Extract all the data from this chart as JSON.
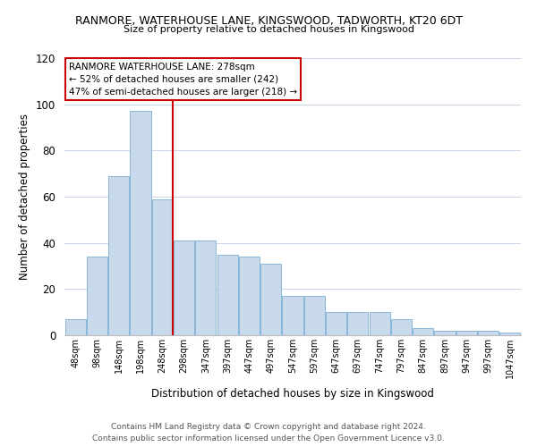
{
  "title": "RANMORE, WATERHOUSE LANE, KINGSWOOD, TADWORTH, KT20 6DT",
  "subtitle": "Size of property relative to detached houses in Kingswood",
  "xlabel": "Distribution of detached houses by size in Kingswood",
  "ylabel": "Number of detached properties",
  "bar_color": "#c8d9ec",
  "bar_edge_color": "#7aafd4",
  "categories": [
    "48sqm",
    "98sqm",
    "148sqm",
    "198sqm",
    "248sqm",
    "298sqm",
    "347sqm",
    "397sqm",
    "447sqm",
    "497sqm",
    "547sqm",
    "597sqm",
    "647sqm",
    "697sqm",
    "747sqm",
    "797sqm",
    "847sqm",
    "897sqm",
    "947sqm",
    "997sqm",
    "1047sqm"
  ],
  "values": [
    7,
    34,
    69,
    97,
    59,
    41,
    41,
    35,
    34,
    31,
    17,
    17,
    10,
    10,
    10,
    7,
    3,
    2,
    2,
    2,
    1
  ],
  "ylim": [
    0,
    120
  ],
  "yticks": [
    0,
    20,
    40,
    60,
    80,
    100,
    120
  ],
  "vline_x": 4.5,
  "vline_color": "#cc0000",
  "annotation_title": "RANMORE WATERHOUSE LANE: 278sqm",
  "annotation_line1": "← 52% of detached houses are smaller (242)",
  "annotation_line2": "47% of semi-detached houses are larger (218) →",
  "annotation_box_color": "#cc0000",
  "footer_line1": "Contains HM Land Registry data © Crown copyright and database right 2024.",
  "footer_line2": "Contains public sector information licensed under the Open Government Licence v3.0.",
  "background_color": "#ffffff",
  "grid_color": "#c8d4e8"
}
